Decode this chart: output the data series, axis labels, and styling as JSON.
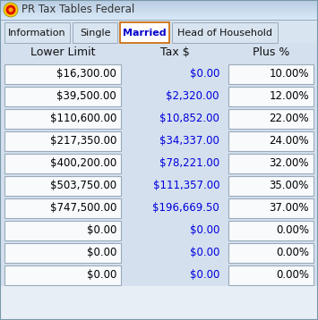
{
  "title": "PR Tax Tables Federal",
  "tabs": [
    "Information",
    "Single",
    "Married",
    "Head of Household"
  ],
  "active_tab": "Married",
  "col_headers": [
    "Lower Limit",
    "Tax $",
    "Plus %"
  ],
  "rows": [
    [
      "$16,300.00",
      "$0.00",
      "10.00%"
    ],
    [
      "$39,500.00",
      "$2,320.00",
      "12.00%"
    ],
    [
      "$110,600.00",
      "$10,852.00",
      "22.00%"
    ],
    [
      "$217,350.00",
      "$34,337.00",
      "24.00%"
    ],
    [
      "$400,200.00",
      "$78,221.00",
      "32.00%"
    ],
    [
      "$503,750.00",
      "$111,357.00",
      "35.00%"
    ],
    [
      "$747,500.00",
      "$196,669.50",
      "37.00%"
    ],
    [
      "$0.00",
      "$0.00",
      "0.00%"
    ],
    [
      "$0.00",
      "$0.00",
      "0.00%"
    ],
    [
      "$0.00",
      "$0.00",
      "0.00%"
    ]
  ],
  "col0_color": "#000000",
  "col1_color": "#0000dd",
  "col2_color": "#000000",
  "active_tab_color": "#0000cc",
  "active_tab_border": "#cc6600",
  "tab_inactive_color": "#111111",
  "title_text_color": "#333333",
  "header_text_color": "#111111",
  "title_bar_color_top": "#b8cce0",
  "title_bar_color_bot": "#d8e8f8",
  "tab_bar_bg": "#d8e4f0",
  "body_bg": "#d4e0ee",
  "cell_bg": "#f8fafc",
  "cell_border": "#9aaabb",
  "tab_active_bg": "#ffffff",
  "tab_inactive_bg": "#d8e4f0",
  "bottom_bg": "#e8eef6"
}
